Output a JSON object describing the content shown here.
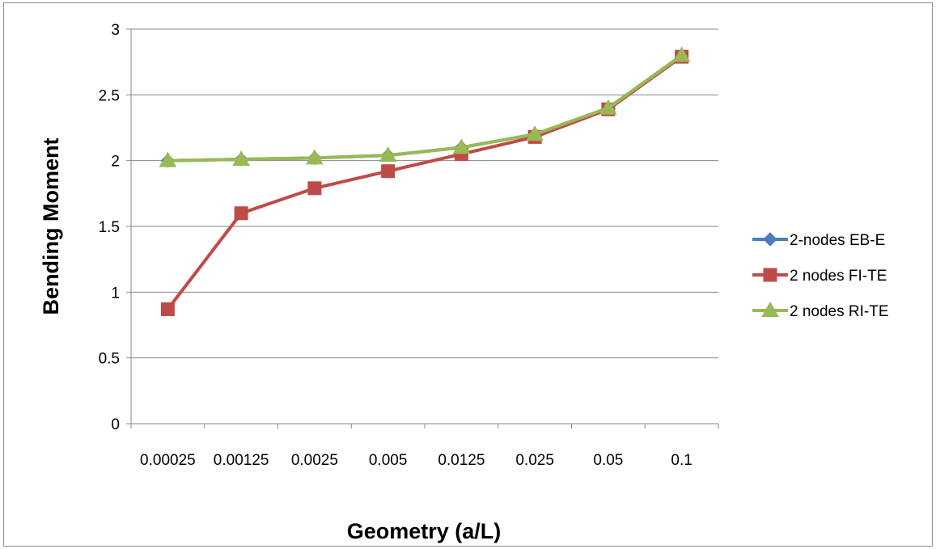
{
  "chart_data": {
    "type": "line",
    "title": "",
    "xlabel": "Geometry (a/L)",
    "ylabel": "Bending Moment",
    "categories": [
      "0.00025",
      "0.00125",
      "0.0025",
      "0.005",
      "0.0125",
      "0.025",
      "0.05",
      "0.1"
    ],
    "ylim": [
      0,
      3
    ],
    "yticks": [
      0,
      0.5,
      1,
      1.5,
      2,
      2.5,
      3
    ],
    "ytick_labels": [
      "0",
      "0.5",
      "1",
      "1.5",
      "2",
      "2.5",
      "3"
    ],
    "grid": true,
    "legend_position": "right",
    "series": [
      {
        "name": "2-nodes EB-E",
        "marker": "diamond",
        "color": "#4a7ebb",
        "values": [
          2.0,
          2.01,
          2.02,
          2.04,
          2.1,
          2.2,
          2.4,
          2.8
        ]
      },
      {
        "name": "2 nodes FI-TE",
        "marker": "square",
        "color": "#be4b48",
        "values": [
          0.87,
          1.6,
          1.79,
          1.92,
          2.05,
          2.18,
          2.39,
          2.79
        ]
      },
      {
        "name": "2 nodes RI-TE",
        "marker": "triangle",
        "color": "#98b954",
        "values": [
          2.0,
          2.01,
          2.02,
          2.04,
          2.1,
          2.2,
          2.4,
          2.8
        ]
      }
    ]
  }
}
